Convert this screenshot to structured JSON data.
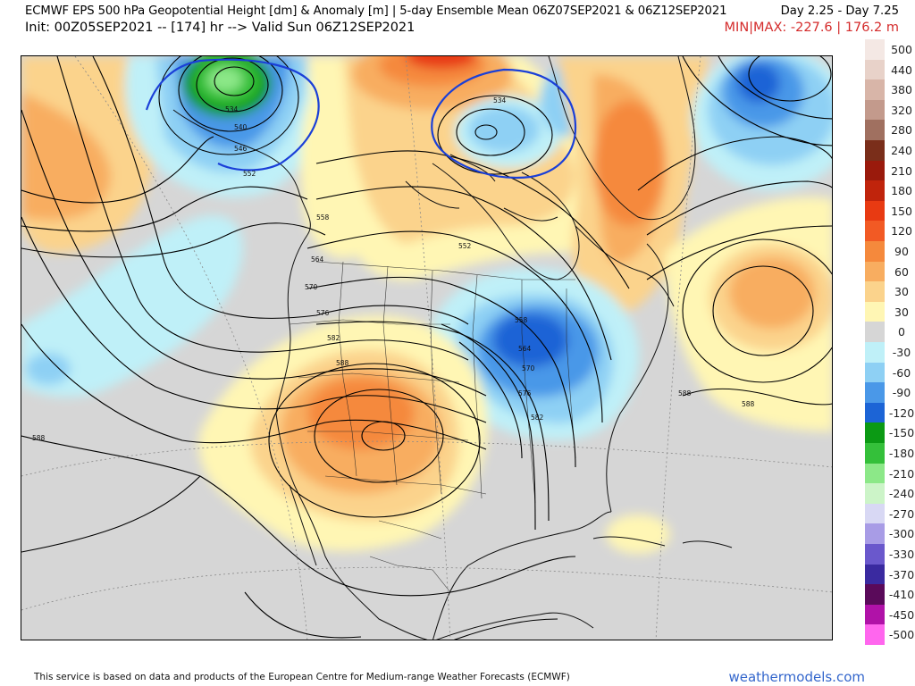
{
  "header": {
    "title": "ECMWF EPS 500 hPa Geopotential Height [dm] & Anomaly [m] | 5-day Ensemble Mean 06Z07SEP2021 & 06Z12SEP2021",
    "day_range": "Day 2.25 - Day 7.25",
    "init_line": "Init: 00Z05SEP2021 -- [174] hr --> Valid Sun 06Z12SEP2021",
    "minmax": "MIN|MAX: -227.6 | 176.2 m"
  },
  "colorbar": {
    "levels": [
      {
        "label": "500",
        "color": "#f4e8e4"
      },
      {
        "label": "440",
        "color": "#e8d2c9"
      },
      {
        "label": "380",
        "color": "#d8b5a8"
      },
      {
        "label": "320",
        "color": "#c39a8c"
      },
      {
        "label": "280",
        "color": "#a07060"
      },
      {
        "label": "240",
        "color": "#7a2e1a"
      },
      {
        "label": "210",
        "color": "#9a1a0c"
      },
      {
        "label": "180",
        "color": "#c0240c"
      },
      {
        "label": "150",
        "color": "#e83a12"
      },
      {
        "label": "120",
        "color": "#f25a24"
      },
      {
        "label": "90",
        "color": "#f5893c"
      },
      {
        "label": "60",
        "color": "#f8ad60"
      },
      {
        "label": "30",
        "color": "#fbd38c"
      },
      {
        "label": "30",
        "color": "#fff6b4"
      },
      {
        "label": "0",
        "color": "#d6d6d6"
      },
      {
        "label": "-30",
        "color": "#bff0f8"
      },
      {
        "label": "-60",
        "color": "#8ed0f4"
      },
      {
        "label": "-90",
        "color": "#4a98e8"
      },
      {
        "label": "-120",
        "color": "#1c64d6"
      },
      {
        "label": "-150",
        "color": "#0b9a14"
      },
      {
        "label": "-180",
        "color": "#34c03a"
      },
      {
        "label": "-210",
        "color": "#8ce888"
      },
      {
        "label": "-240",
        "color": "#ccf4c8"
      },
      {
        "label": "-270",
        "color": "#d8d8f4"
      },
      {
        "label": "-300",
        "color": "#a89ce6"
      },
      {
        "label": "-330",
        "color": "#6a58cc"
      },
      {
        "label": "-370",
        "color": "#3a2aa0"
      },
      {
        "label": "-410",
        "color": "#5a0a5a"
      },
      {
        "label": "-450",
        "color": "#b012a8"
      },
      {
        "label": "-500",
        "color": "#ff66ee"
      }
    ]
  },
  "contour_labels": [
    {
      "text": "534"
    },
    {
      "text": "540"
    },
    {
      "text": "546"
    },
    {
      "text": "552"
    },
    {
      "text": "558"
    },
    {
      "text": "564"
    },
    {
      "text": "570"
    },
    {
      "text": "576"
    },
    {
      "text": "582"
    },
    {
      "text": "588"
    },
    {
      "text": "534"
    },
    {
      "text": "552"
    },
    {
      "text": "558"
    },
    {
      "text": "564"
    },
    {
      "text": "570"
    },
    {
      "text": "576"
    },
    {
      "text": "582"
    },
    {
      "text": "588"
    },
    {
      "text": "588"
    },
    {
      "text": "588"
    }
  ],
  "footer": {
    "attribution": "This service is based on data and products of the European Centre for Medium-range Weather Forecasts (ECMWF)",
    "site": "weathermodels.com"
  },
  "colors": {
    "neutral": "#d6d6d6",
    "contour": "#000000",
    "ens_contour_blue": "#1a3fd8",
    "minmax_red": "#d42a2a",
    "site_blue": "#3366cc"
  }
}
